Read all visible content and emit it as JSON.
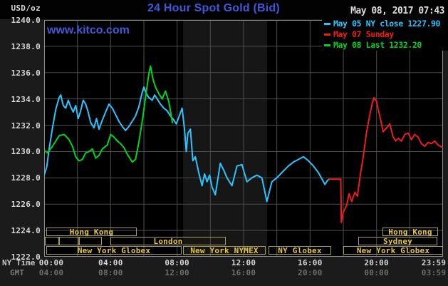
{
  "header": {
    "title": "24 Hour Spot Gold (Bid)",
    "datetime": "May 08, 2017 07:43",
    "watermark": "www.kitco.com",
    "unit_label": "USD/oz"
  },
  "colors": {
    "outer_background": "#1b1b1b",
    "plot_background": "#000000",
    "shaded_band": "#161616",
    "grid": "#4c4c4c",
    "plot_border": "#8f8f8f",
    "title_blue": "#3d58dc",
    "axis_text": "#d6d6d6",
    "gmt_text": "#6e6e6e",
    "session_border": "#a79e55",
    "session_text": "#e7c63b",
    "series_may05": "#2bc4ff",
    "series_may07": "#ee1c1c",
    "series_may08": "#00d41e"
  },
  "legend": {
    "entries": [
      {
        "label": "May 05 NY close 1227.90",
        "color": "#2bc4ff"
      },
      {
        "label": "May 07 Sunday",
        "color": "#ee1c1c"
      },
      {
        "label": "May 08 Last 1232.20",
        "color": "#00d41e"
      }
    ]
  },
  "axes": {
    "y": {
      "min": 1222,
      "max": 1240,
      "tick_step": 2,
      "ticks": [
        {
          "value": 1240,
          "text": "1240.0"
        },
        {
          "value": 1238,
          "text": "1238.0"
        },
        {
          "value": 1236,
          "text": "1236.0"
        },
        {
          "value": 1234,
          "text": "1234.0"
        },
        {
          "value": 1232,
          "text": "1232.0"
        },
        {
          "value": 1230,
          "text": "1230.0"
        },
        {
          "value": 1228,
          "text": "1228.0"
        },
        {
          "value": 1226,
          "text": "1226.0"
        },
        {
          "value": 1224,
          "text": "1224.0"
        },
        {
          "value": 1222,
          "text": "1222.0"
        }
      ]
    },
    "x_ny": {
      "label": "NY Time",
      "ticks": [
        {
          "t": 0,
          "text": "00:00"
        },
        {
          "t": 4,
          "text": "04:00"
        },
        {
          "t": 8,
          "text": "08:00"
        },
        {
          "t": 12,
          "text": "12:00"
        },
        {
          "t": 16,
          "text": "16:00"
        },
        {
          "t": 20,
          "text": "20:00"
        },
        {
          "t": 23.98,
          "text": "23:59"
        }
      ]
    },
    "x_gmt": {
      "label": "GMT",
      "ticks": [
        {
          "t": 0,
          "text": "04:00"
        },
        {
          "t": 4,
          "text": "08:00"
        },
        {
          "t": 8,
          "text": "12:00"
        },
        {
          "t": 12,
          "text": "16:00"
        },
        {
          "t": 16,
          "text": "20:00"
        },
        {
          "t": 20,
          "text": "00:00"
        },
        {
          "t": 23.98,
          "text": "03:59"
        }
      ]
    },
    "x_gridline_hours": [
      2,
      4,
      6,
      8,
      10,
      12,
      14,
      16,
      18,
      20,
      22
    ],
    "y_gridline_values": [
      1224,
      1226,
      1228,
      1230,
      1232,
      1234,
      1236,
      1238
    ]
  },
  "sessions": {
    "rows": [
      {
        "boxes": [
          {
            "t0": 0.12,
            "t1": 5.57,
            "label": "Hong Kong"
          },
          {
            "t0": 20.36,
            "t1": 23.7,
            "label": "Hong Kong"
          }
        ]
      },
      {
        "boxes": [
          {
            "t0": 0.05,
            "t1": 0.9,
            "label": ""
          },
          {
            "t0": 0.9,
            "t1": 2.1,
            "label": ""
          },
          {
            "t0": 2.1,
            "t1": 3.47,
            "label": ""
          },
          {
            "t0": 3.98,
            "t1": 10.93,
            "label": "London"
          },
          {
            "t0": 18.9,
            "t1": 23.66,
            "label": "Sydney"
          }
        ]
      },
      {
        "boxes": [
          {
            "t0": 0.12,
            "t1": 8.27,
            "label": "New York Globex"
          },
          {
            "t0": 8.36,
            "t1": 13.33,
            "label": "New York NYMEX"
          },
          {
            "t0": 13.5,
            "t1": 17.27,
            "label": "NY Globex"
          },
          {
            "t0": 18.0,
            "t1": 23.98,
            "label": "New York Globex"
          }
        ]
      }
    ]
  },
  "chart_data": {
    "type": "line",
    "title": "24 Hour Spot Gold (Bid)",
    "xlabel": "NY Time (hours 00:00-23:59)",
    "ylabel": "USD/oz",
    "ylim": [
      1222,
      1240
    ],
    "xlim_hours": [
      0,
      24
    ],
    "grid": true,
    "legend_position": "top-right",
    "shaded_band_hours": {
      "start": 8.36,
      "end": 13.42,
      "note": "NYMEX pit session shading"
    },
    "ny_close_reference": 1227.9,
    "last_price": 1232.2,
    "series": [
      {
        "name": "May 05 NY close 1227.90",
        "color": "#2bc4ff",
        "points": [
          [
            0,
            1228.2
          ],
          [
            0.15,
            1228.8
          ],
          [
            0.3,
            1230.2
          ],
          [
            0.5,
            1231.8
          ],
          [
            0.7,
            1233.2
          ],
          [
            0.9,
            1234.1
          ],
          [
            1,
            1234.3
          ],
          [
            1.15,
            1233.5
          ],
          [
            1.3,
            1233.3
          ],
          [
            1.45,
            1233.9
          ],
          [
            1.6,
            1233.4
          ],
          [
            1.75,
            1233
          ],
          [
            1.9,
            1233.5
          ],
          [
            2.05,
            1232.5
          ],
          [
            2.2,
            1233.1
          ],
          [
            2.35,
            1233.9
          ],
          [
            2.5,
            1233.6
          ],
          [
            2.65,
            1233
          ],
          [
            2.8,
            1232.2
          ],
          [
            3,
            1231.8
          ],
          [
            3.15,
            1232.5
          ],
          [
            3.3,
            1231.7
          ],
          [
            3.5,
            1232.4
          ],
          [
            3.7,
            1233
          ],
          [
            3.9,
            1233.6
          ],
          [
            4.1,
            1233.3
          ],
          [
            4.3,
            1232.8
          ],
          [
            4.5,
            1232.3
          ],
          [
            4.7,
            1231.9
          ],
          [
            4.9,
            1231.6
          ],
          [
            5.1,
            1231.9
          ],
          [
            5.3,
            1232.3
          ],
          [
            5.5,
            1232.7
          ],
          [
            5.7,
            1233.4
          ],
          [
            5.9,
            1234.5
          ],
          [
            6,
            1234.9
          ],
          [
            6.15,
            1234.4
          ],
          [
            6.3,
            1234.1
          ],
          [
            6.5,
            1233.9
          ],
          [
            6.65,
            1234.3
          ],
          [
            6.8,
            1234
          ],
          [
            7,
            1233.6
          ],
          [
            7.2,
            1233.3
          ],
          [
            7.4,
            1233.1
          ],
          [
            7.6,
            1232.7
          ],
          [
            7.8,
            1232.4
          ],
          [
            7.95,
            1232.1
          ],
          [
            8.1,
            1232.6
          ],
          [
            8.3,
            1233.3
          ],
          [
            8.45,
            1231.6
          ],
          [
            8.55,
            1230
          ],
          [
            8.65,
            1231.4
          ],
          [
            8.8,
            1231.7
          ],
          [
            8.95,
            1229.3
          ],
          [
            9.1,
            1229.6
          ],
          [
            9.3,
            1228.4
          ],
          [
            9.5,
            1227.4
          ],
          [
            9.65,
            1228.3
          ],
          [
            9.8,
            1227.7
          ],
          [
            9.95,
            1228.2
          ],
          [
            10.1,
            1227.3
          ],
          [
            10.3,
            1226.7
          ],
          [
            10.6,
            1229.1
          ],
          [
            10.8,
            1228.6
          ],
          [
            11,
            1228
          ],
          [
            11.3,
            1227.4
          ],
          [
            11.6,
            1228.9
          ],
          [
            11.9,
            1229
          ],
          [
            12.2,
            1227.7
          ],
          [
            12.5,
            1228
          ],
          [
            12.8,
            1228.2
          ],
          [
            13.1,
            1228
          ],
          [
            13.4,
            1226.2
          ],
          [
            13.7,
            1227.7
          ],
          [
            14,
            1228
          ],
          [
            14.3,
            1228.4
          ],
          [
            14.7,
            1228.9
          ],
          [
            15,
            1229.2
          ],
          [
            15.3,
            1229.4
          ],
          [
            15.6,
            1229.6
          ],
          [
            15.9,
            1229.3
          ],
          [
            16.2,
            1228.9
          ],
          [
            16.5,
            1228.4
          ],
          [
            16.9,
            1227.5
          ],
          [
            17.05,
            1227.8
          ],
          [
            17.15,
            1227.9
          ]
        ]
      },
      {
        "name": "May 07 Sunday",
        "color": "#ee1c1c",
        "points": [
          [
            17.15,
            1227.9
          ],
          [
            17.85,
            1227.9
          ],
          [
            17.88,
            1224.6
          ],
          [
            18,
            1225.4
          ],
          [
            18.2,
            1225.9
          ],
          [
            18.35,
            1226.8
          ],
          [
            18.5,
            1226.2
          ],
          [
            18.7,
            1226.9
          ],
          [
            18.85,
            1226.6
          ],
          [
            19,
            1228
          ],
          [
            19.2,
            1229.6
          ],
          [
            19.4,
            1231.5
          ],
          [
            19.6,
            1232.8
          ],
          [
            19.75,
            1233.7
          ],
          [
            19.85,
            1234.1
          ],
          [
            20,
            1233.8
          ],
          [
            20.1,
            1233.2
          ],
          [
            20.25,
            1232.4
          ],
          [
            20.4,
            1231.5
          ],
          [
            20.6,
            1231.8
          ],
          [
            20.8,
            1232.1
          ],
          [
            21,
            1231.1
          ],
          [
            21.15,
            1230.8
          ],
          [
            21.3,
            1231
          ],
          [
            21.5,
            1230.8
          ],
          [
            21.7,
            1231.3
          ],
          [
            21.9,
            1231.4
          ],
          [
            22.1,
            1230.9
          ],
          [
            22.3,
            1231.3
          ],
          [
            22.5,
            1231.1
          ],
          [
            22.7,
            1230.6
          ],
          [
            22.9,
            1230.4
          ],
          [
            23.1,
            1230.7
          ],
          [
            23.3,
            1230.6
          ],
          [
            23.5,
            1230.8
          ],
          [
            23.7,
            1230.5
          ],
          [
            23.98,
            1230.3
          ]
        ]
      },
      {
        "name": "May 08 Last 1232.20",
        "color": "#00d41e",
        "points": [
          [
            0,
            1230.1
          ],
          [
            0.2,
            1229.9
          ],
          [
            0.5,
            1230.4
          ],
          [
            0.9,
            1231.2
          ],
          [
            1.2,
            1231.3
          ],
          [
            1.5,
            1230.9
          ],
          [
            1.7,
            1230.4
          ],
          [
            1.9,
            1229.6
          ],
          [
            2.1,
            1229.3
          ],
          [
            2.3,
            1229.4
          ],
          [
            2.5,
            1229.9
          ],
          [
            2.7,
            1230
          ],
          [
            2.9,
            1230.2
          ],
          [
            3.1,
            1229.5
          ],
          [
            3.3,
            1229.7
          ],
          [
            3.5,
            1230.2
          ],
          [
            3.8,
            1230.5
          ],
          [
            4,
            1231.3
          ],
          [
            4.2,
            1231.1
          ],
          [
            4.4,
            1230.8
          ],
          [
            4.6,
            1230.6
          ],
          [
            4.8,
            1230.3
          ],
          [
            5,
            1229.8
          ],
          [
            5.3,
            1229.2
          ],
          [
            5.5,
            1229.4
          ],
          [
            5.7,
            1230.7
          ],
          [
            5.9,
            1232.3
          ],
          [
            6.1,
            1234.1
          ],
          [
            6.3,
            1235.9
          ],
          [
            6.4,
            1236.5
          ],
          [
            6.55,
            1235.5
          ],
          [
            6.7,
            1234.9
          ],
          [
            6.9,
            1234.4
          ],
          [
            7.1,
            1234
          ],
          [
            7.3,
            1234.6
          ],
          [
            7.5,
            1233.8
          ],
          [
            7.6,
            1233.1
          ],
          [
            7.72,
            1232.2
          ]
        ]
      }
    ]
  }
}
